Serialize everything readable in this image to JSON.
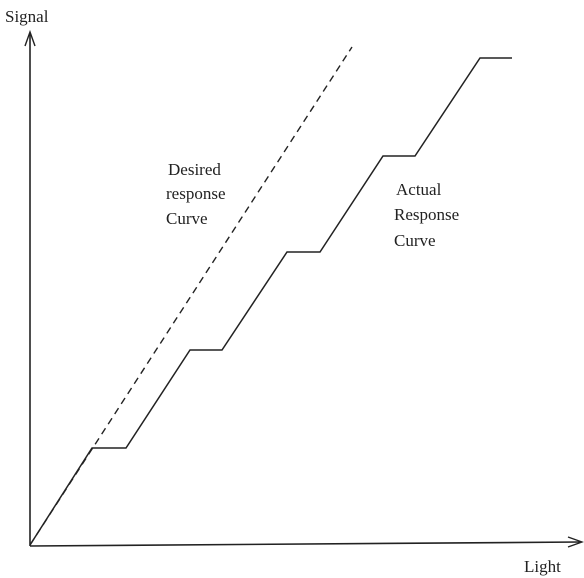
{
  "axes": {
    "y_label": "Signal",
    "x_label": "Light"
  },
  "annotations": [
    {
      "lines": [
        "Desired",
        "response",
        "Curve"
      ]
    },
    {
      "lines": [
        "Actual",
        "Response",
        "Curve"
      ]
    }
  ]
}
